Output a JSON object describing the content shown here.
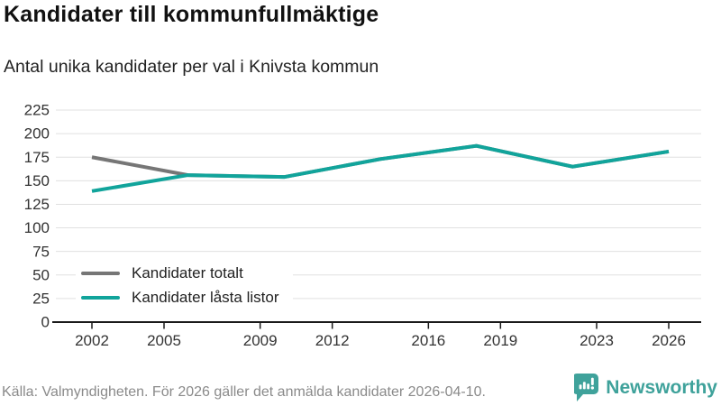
{
  "chart_data": {
    "type": "line",
    "title": "Kandidater till kommunfullmäktige",
    "subtitle": "Antal unika kandidater per val i Knivsta kommun",
    "x": [
      2002,
      2006,
      2010,
      2014,
      2018,
      2022,
      2026
    ],
    "series": [
      {
        "name": "Kandidater totalt",
        "color": "#767676",
        "values": [
          175,
          156,
          154,
          173,
          187,
          165,
          181
        ]
      },
      {
        "name": "Kandidater låsta listor",
        "color": "#11a49b",
        "values": [
          139,
          156,
          154,
          173,
          187,
          165,
          181
        ]
      }
    ],
    "x_tick_labels": [
      "2002",
      "2005",
      "2009",
      "2012",
      "2016",
      "2019",
      "2023",
      "2026"
    ],
    "x_tick_years": [
      2002,
      2005,
      2009,
      2012,
      2016,
      2019,
      2023,
      2026
    ],
    "y_ticks": [
      0,
      25,
      50,
      75,
      100,
      125,
      150,
      175,
      200,
      225
    ],
    "ylim": [
      0,
      225
    ],
    "xlim": [
      2000.5,
      2027.3
    ],
    "grid": "horizontal-only",
    "legend_position": "inside-bottom-left"
  },
  "footer": {
    "source": "Källa: Valmyndigheten. För 2026 gäller det anmälda kandidater 2026-04-10.",
    "brand": "Newsworthy"
  },
  "colors": {
    "grid": "#e0e0e0",
    "axis": "#1a1a1a",
    "tick_label": "#333333",
    "title": "#111111",
    "subtitle": "#222222",
    "source_text": "#8a8a8a",
    "brand_teal": "#3fa29b",
    "series_gray": "#767676",
    "series_teal": "#11a49b"
  }
}
